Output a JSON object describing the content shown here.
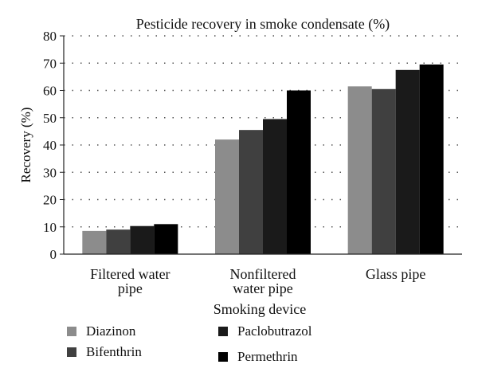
{
  "chart_data": {
    "type": "bar",
    "title": "Pesticide recovery in smoke condensate (%)",
    "xlabel": "Smoking device",
    "ylabel": "Recovery (%)",
    "ylim": [
      0,
      80
    ],
    "yticks": [
      "0",
      "10",
      "20",
      "30",
      "40",
      "50",
      "60",
      "70",
      "80"
    ],
    "grid": "dotted horizontal",
    "legend_position": "bottom",
    "categories": [
      [
        "Filtered water",
        "pipe"
      ],
      [
        "Nonfiltered",
        "water pipe"
      ],
      [
        "Glass pipe"
      ]
    ],
    "series": [
      {
        "name": "Diazinon",
        "color": "#8c8c8c",
        "values": [
          8.5,
          42.0,
          61.5
        ]
      },
      {
        "name": "Bifenthrin",
        "color": "#404040",
        "values": [
          9.0,
          45.5,
          60.5
        ]
      },
      {
        "name": "Paclobutrazol",
        "color": "#1a1a1a",
        "values": [
          10.3,
          49.5,
          67.5
        ]
      },
      {
        "name": "Permethrin",
        "color": "#000000",
        "values": [
          11.0,
          60.0,
          69.5
        ]
      }
    ]
  }
}
